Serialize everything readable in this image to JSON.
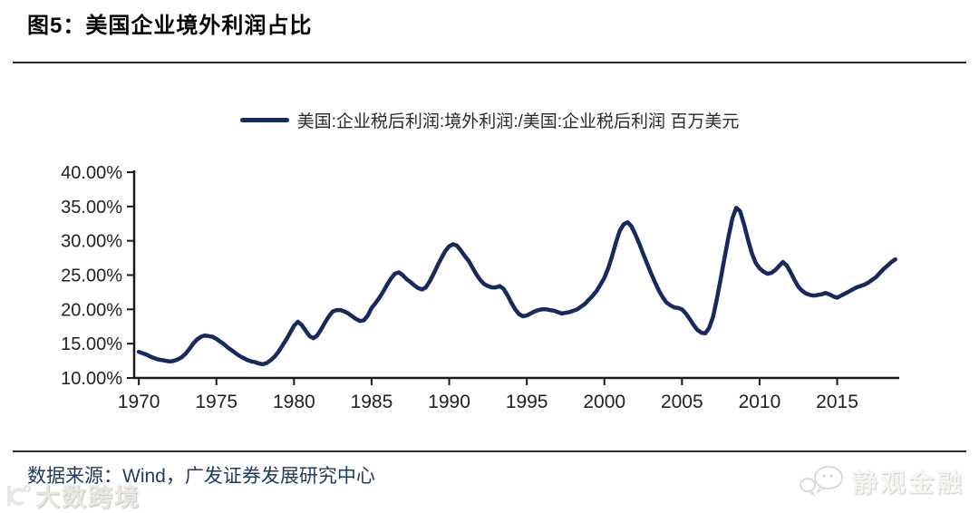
{
  "header": {
    "title": "图5：美国企业境外利润占比"
  },
  "footer": {
    "source_note": "数据来源：Wind，广发证券发展研究中心"
  },
  "watermarks": {
    "left_text": "大数跨境",
    "right_text": "静观金融"
  },
  "chart_data": {
    "type": "line",
    "title": "",
    "xlabel": "",
    "ylabel": "",
    "legend_label": "美国:企业税后利润:境外利润:/美国:企业税后利润  百万美元",
    "legend_position": "top-center",
    "grid": false,
    "line_color": "#17295d",
    "axis_color": "#1a1a1a",
    "tick_label_color": "#222222",
    "xlim": [
      1969.7,
      2019.0
    ],
    "ylim": [
      10,
      40
    ],
    "y_ticks": [
      {
        "value": 40,
        "label": "40.00%"
      },
      {
        "value": 35,
        "label": "35.00%"
      },
      {
        "value": 30,
        "label": "30.00%"
      },
      {
        "value": 25,
        "label": "25.00%"
      },
      {
        "value": 20,
        "label": "20.00%"
      },
      {
        "value": 15,
        "label": "15.00%"
      },
      {
        "value": 10,
        "label": "10.00%"
      }
    ],
    "x_ticks": [
      {
        "value": 1970,
        "label": "1970"
      },
      {
        "value": 1975,
        "label": "1975"
      },
      {
        "value": 1980,
        "label": "1980"
      },
      {
        "value": 1985,
        "label": "1985"
      },
      {
        "value": 1990,
        "label": "1990"
      },
      {
        "value": 1995,
        "label": "1995"
      },
      {
        "value": 2000,
        "label": "2000"
      },
      {
        "value": 2005,
        "label": "2005"
      },
      {
        "value": 2010,
        "label": "2010"
      },
      {
        "value": 2015,
        "label": "2015"
      }
    ],
    "series": [
      {
        "name": "美国:企业税后利润:境外利润:/美国:企业税后利润 百万美元",
        "unit": "percent",
        "points": [
          [
            1970.0,
            13.8
          ],
          [
            1970.25,
            13.6
          ],
          [
            1970.5,
            13.4
          ],
          [
            1970.75,
            13.1
          ],
          [
            1971.0,
            12.9
          ],
          [
            1971.25,
            12.7
          ],
          [
            1971.5,
            12.6
          ],
          [
            1971.75,
            12.5
          ],
          [
            1972.0,
            12.4
          ],
          [
            1972.25,
            12.5
          ],
          [
            1972.5,
            12.7
          ],
          [
            1972.75,
            13.0
          ],
          [
            1973.0,
            13.5
          ],
          [
            1973.25,
            14.2
          ],
          [
            1973.5,
            15.0
          ],
          [
            1973.75,
            15.6
          ],
          [
            1974.0,
            16.0
          ],
          [
            1974.25,
            16.2
          ],
          [
            1974.5,
            16.1
          ],
          [
            1974.75,
            16.0
          ],
          [
            1975.0,
            15.7
          ],
          [
            1975.25,
            15.3
          ],
          [
            1975.5,
            14.9
          ],
          [
            1975.75,
            14.4
          ],
          [
            1976.0,
            14.0
          ],
          [
            1976.25,
            13.6
          ],
          [
            1976.5,
            13.2
          ],
          [
            1976.75,
            12.9
          ],
          [
            1977.0,
            12.6
          ],
          [
            1977.25,
            12.4
          ],
          [
            1977.5,
            12.3
          ],
          [
            1977.75,
            12.1
          ],
          [
            1978.0,
            12.0
          ],
          [
            1978.25,
            12.2
          ],
          [
            1978.5,
            12.6
          ],
          [
            1978.75,
            13.1
          ],
          [
            1979.0,
            13.8
          ],
          [
            1979.25,
            14.7
          ],
          [
            1979.5,
            15.6
          ],
          [
            1979.75,
            16.6
          ],
          [
            1980.0,
            17.6
          ],
          [
            1980.25,
            18.2
          ],
          [
            1980.5,
            17.7
          ],
          [
            1980.75,
            16.9
          ],
          [
            1981.0,
            16.1
          ],
          [
            1981.25,
            15.8
          ],
          [
            1981.5,
            16.2
          ],
          [
            1981.75,
            17.1
          ],
          [
            1982.0,
            18.1
          ],
          [
            1982.25,
            19.0
          ],
          [
            1982.5,
            19.7
          ],
          [
            1982.75,
            19.9
          ],
          [
            1983.0,
            19.9
          ],
          [
            1983.25,
            19.7
          ],
          [
            1983.5,
            19.4
          ],
          [
            1983.75,
            19.0
          ],
          [
            1984.0,
            18.6
          ],
          [
            1984.25,
            18.3
          ],
          [
            1984.5,
            18.4
          ],
          [
            1984.75,
            19.1
          ],
          [
            1985.0,
            20.2
          ],
          [
            1985.25,
            20.9
          ],
          [
            1985.5,
            21.7
          ],
          [
            1985.75,
            22.6
          ],
          [
            1986.0,
            23.6
          ],
          [
            1986.25,
            24.5
          ],
          [
            1986.5,
            25.2
          ],
          [
            1986.75,
            25.4
          ],
          [
            1987.0,
            25.0
          ],
          [
            1987.25,
            24.4
          ],
          [
            1987.5,
            24.0
          ],
          [
            1987.75,
            23.5
          ],
          [
            1988.0,
            23.1
          ],
          [
            1988.25,
            22.9
          ],
          [
            1988.5,
            23.2
          ],
          [
            1988.75,
            24.1
          ],
          [
            1989.0,
            25.2
          ],
          [
            1989.25,
            26.4
          ],
          [
            1989.5,
            27.5
          ],
          [
            1989.75,
            28.5
          ],
          [
            1990.0,
            29.2
          ],
          [
            1990.25,
            29.5
          ],
          [
            1990.5,
            29.3
          ],
          [
            1990.75,
            28.6
          ],
          [
            1991.0,
            27.8
          ],
          [
            1991.25,
            27.1
          ],
          [
            1991.5,
            26.1
          ],
          [
            1991.75,
            25.1
          ],
          [
            1992.0,
            24.3
          ],
          [
            1992.25,
            23.7
          ],
          [
            1992.5,
            23.4
          ],
          [
            1992.75,
            23.2
          ],
          [
            1993.0,
            23.2
          ],
          [
            1993.25,
            23.4
          ],
          [
            1993.5,
            23.0
          ],
          [
            1993.75,
            22.1
          ],
          [
            1994.0,
            21.0
          ],
          [
            1994.25,
            20.0
          ],
          [
            1994.5,
            19.3
          ],
          [
            1994.75,
            19.0
          ],
          [
            1995.0,
            19.1
          ],
          [
            1995.25,
            19.4
          ],
          [
            1995.5,
            19.7
          ],
          [
            1995.75,
            19.9
          ],
          [
            1996.0,
            20.0
          ],
          [
            1996.25,
            20.0
          ],
          [
            1996.5,
            19.9
          ],
          [
            1996.75,
            19.8
          ],
          [
            1997.0,
            19.6
          ],
          [
            1997.25,
            19.4
          ],
          [
            1997.5,
            19.5
          ],
          [
            1997.75,
            19.6
          ],
          [
            1998.0,
            19.8
          ],
          [
            1998.25,
            20.0
          ],
          [
            1998.5,
            20.4
          ],
          [
            1998.75,
            20.8
          ],
          [
            1999.0,
            21.4
          ],
          [
            1999.25,
            22.0
          ],
          [
            1999.5,
            22.7
          ],
          [
            1999.75,
            23.6
          ],
          [
            2000.0,
            24.6
          ],
          [
            2000.25,
            26.0
          ],
          [
            2000.5,
            27.8
          ],
          [
            2000.75,
            29.8
          ],
          [
            2001.0,
            31.5
          ],
          [
            2001.25,
            32.4
          ],
          [
            2001.5,
            32.7
          ],
          [
            2001.75,
            32.1
          ],
          [
            2002.0,
            30.9
          ],
          [
            2002.25,
            29.6
          ],
          [
            2002.5,
            28.1
          ],
          [
            2002.75,
            26.7
          ],
          [
            2003.0,
            25.3
          ],
          [
            2003.25,
            24.0
          ],
          [
            2003.5,
            22.8
          ],
          [
            2003.75,
            21.8
          ],
          [
            2004.0,
            21.0
          ],
          [
            2004.25,
            20.6
          ],
          [
            2004.5,
            20.3
          ],
          [
            2004.75,
            20.2
          ],
          [
            2005.0,
            20.0
          ],
          [
            2005.25,
            19.4
          ],
          [
            2005.5,
            18.6
          ],
          [
            2005.75,
            17.7
          ],
          [
            2006.0,
            17.0
          ],
          [
            2006.25,
            16.6
          ],
          [
            2006.5,
            16.5
          ],
          [
            2006.75,
            17.3
          ],
          [
            2007.0,
            18.9
          ],
          [
            2007.25,
            21.5
          ],
          [
            2007.5,
            24.5
          ],
          [
            2007.75,
            27.6
          ],
          [
            2008.0,
            30.6
          ],
          [
            2008.25,
            33.3
          ],
          [
            2008.5,
            34.8
          ],
          [
            2008.75,
            34.3
          ],
          [
            2009.0,
            32.4
          ],
          [
            2009.25,
            30.2
          ],
          [
            2009.5,
            28.2
          ],
          [
            2009.75,
            26.8
          ],
          [
            2010.0,
            26.0
          ],
          [
            2010.25,
            25.5
          ],
          [
            2010.5,
            25.2
          ],
          [
            2010.75,
            25.3
          ],
          [
            2011.0,
            25.7
          ],
          [
            2011.25,
            26.3
          ],
          [
            2011.5,
            26.9
          ],
          [
            2011.75,
            26.4
          ],
          [
            2012.0,
            25.4
          ],
          [
            2012.25,
            24.3
          ],
          [
            2012.5,
            23.3
          ],
          [
            2012.75,
            22.7
          ],
          [
            2013.0,
            22.3
          ],
          [
            2013.25,
            22.1
          ],
          [
            2013.5,
            22.0
          ],
          [
            2013.75,
            22.1
          ],
          [
            2014.0,
            22.2
          ],
          [
            2014.25,
            22.4
          ],
          [
            2014.5,
            22.2
          ],
          [
            2014.75,
            21.9
          ],
          [
            2015.0,
            21.7
          ],
          [
            2015.25,
            22.0
          ],
          [
            2015.5,
            22.3
          ],
          [
            2015.75,
            22.6
          ],
          [
            2016.0,
            22.9
          ],
          [
            2016.25,
            23.2
          ],
          [
            2016.5,
            23.4
          ],
          [
            2016.75,
            23.6
          ],
          [
            2017.0,
            23.9
          ],
          [
            2017.25,
            24.3
          ],
          [
            2017.5,
            24.7
          ],
          [
            2017.75,
            25.3
          ],
          [
            2018.0,
            25.9
          ],
          [
            2018.25,
            26.4
          ],
          [
            2018.5,
            26.9
          ],
          [
            2018.75,
            27.3
          ]
        ]
      }
    ]
  }
}
